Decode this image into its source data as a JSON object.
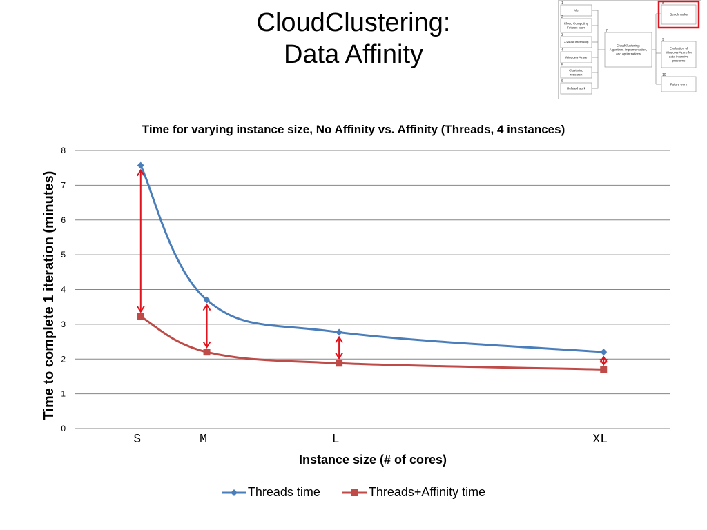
{
  "slide": {
    "title_line1": "CloudClustering:",
    "title_line2": "Data Affinity"
  },
  "thumbnail": {
    "boxes": [
      {
        "num": "1",
        "label": "Me"
      },
      {
        "num": "2",
        "label": "Cloud Computing Futures team"
      },
      {
        "num": "3",
        "label": "7-week internship"
      },
      {
        "num": "4",
        "label": "Windows Azure"
      },
      {
        "num": "5",
        "label": "Clustering research"
      },
      {
        "num": "6",
        "label": "Related work"
      },
      {
        "num": "7",
        "label": "CloudClustering: Algorithm, implementation, and optimizations"
      },
      {
        "num": "8",
        "label": "Benchmarks"
      },
      {
        "num": "9",
        "label": "Evaluation of Windows Azure for data-intensive problems"
      },
      {
        "num": "10",
        "label": "Future work"
      }
    ],
    "highlight_color": "#e0141e"
  },
  "chart_data": {
    "type": "line",
    "title": "Time for varying instance size, No Affinity vs. Affinity (Threads, 4 instances)",
    "xlabel": "Instance size (# of cores)",
    "ylabel": "Time to complete 1 iteration (minutes)",
    "categories": [
      "S",
      "M",
      "L",
      "XL"
    ],
    "x": [
      1,
      2,
      4,
      8
    ],
    "xlim": [
      0,
      9
    ],
    "ylim": [
      0,
      8
    ],
    "yticks": [
      0,
      1,
      2,
      3,
      4,
      5,
      6,
      7,
      8
    ],
    "grid": true,
    "series": [
      {
        "name": "Threads time",
        "values": [
          7.57,
          3.7,
          2.77,
          2.2
        ],
        "color": "#4a7ebb",
        "marker": "diamond"
      },
      {
        "name": "Threads+Affinity time",
        "values": [
          3.22,
          2.2,
          1.88,
          1.7
        ],
        "color": "#be4b48",
        "marker": "square"
      }
    ],
    "annotation_arrows_color": "#e0141e",
    "legend_position": "bottom"
  }
}
